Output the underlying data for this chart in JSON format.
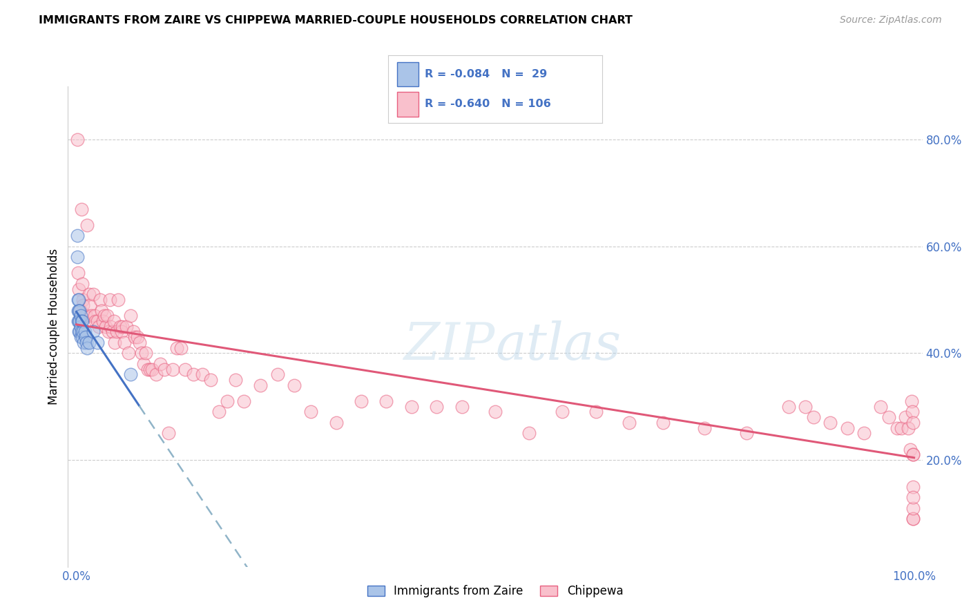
{
  "title": "IMMIGRANTS FROM ZAIRE VS CHIPPEWA MARRIED-COUPLE HOUSEHOLDS CORRELATION CHART",
  "source": "Source: ZipAtlas.com",
  "ylabel": "Married-couple Households",
  "y_ticks": [
    0.2,
    0.4,
    0.6,
    0.8
  ],
  "y_tick_labels": [
    "20.0%",
    "40.0%",
    "60.0%",
    "80.0%"
  ],
  "legend_labels_bottom": [
    "Immigrants from Zaire",
    "Chippewa"
  ],
  "blue_fill_color": "#aac4e8",
  "blue_edge_color": "#4472c4",
  "pink_fill_color": "#f9c0cc",
  "pink_edge_color": "#e86080",
  "blue_line_color": "#4472c4",
  "pink_line_color": "#e05878",
  "dashed_line_color": "#90b4c8",
  "grid_color": "#cccccc",
  "blue_scatter_x": [
    0.001,
    0.001,
    0.002,
    0.002,
    0.002,
    0.003,
    0.003,
    0.003,
    0.003,
    0.004,
    0.004,
    0.004,
    0.005,
    0.005,
    0.005,
    0.006,
    0.006,
    0.007,
    0.007,
    0.008,
    0.009,
    0.01,
    0.011,
    0.012,
    0.013,
    0.015,
    0.02,
    0.025,
    0.065
  ],
  "blue_scatter_y": [
    0.62,
    0.58,
    0.5,
    0.48,
    0.46,
    0.5,
    0.48,
    0.46,
    0.44,
    0.48,
    0.46,
    0.44,
    0.47,
    0.45,
    0.43,
    0.46,
    0.44,
    0.46,
    0.43,
    0.44,
    0.42,
    0.44,
    0.43,
    0.42,
    0.41,
    0.42,
    0.44,
    0.42,
    0.36
  ],
  "pink_scatter_x": [
    0.001,
    0.002,
    0.003,
    0.005,
    0.006,
    0.007,
    0.008,
    0.008,
    0.01,
    0.012,
    0.013,
    0.015,
    0.016,
    0.018,
    0.02,
    0.022,
    0.023,
    0.025,
    0.027,
    0.028,
    0.03,
    0.032,
    0.033,
    0.035,
    0.037,
    0.038,
    0.04,
    0.041,
    0.043,
    0.045,
    0.046,
    0.048,
    0.05,
    0.052,
    0.054,
    0.055,
    0.057,
    0.06,
    0.062,
    0.065,
    0.068,
    0.07,
    0.073,
    0.075,
    0.078,
    0.08,
    0.083,
    0.085,
    0.088,
    0.09,
    0.095,
    0.1,
    0.105,
    0.11,
    0.115,
    0.12,
    0.125,
    0.13,
    0.14,
    0.15,
    0.16,
    0.17,
    0.18,
    0.19,
    0.2,
    0.22,
    0.24,
    0.26,
    0.28,
    0.31,
    0.34,
    0.37,
    0.4,
    0.43,
    0.46,
    0.5,
    0.54,
    0.58,
    0.62,
    0.66,
    0.7,
    0.75,
    0.8,
    0.85,
    0.87,
    0.88,
    0.9,
    0.92,
    0.94,
    0.96,
    0.97,
    0.98,
    0.985,
    0.99,
    0.993,
    0.995,
    0.997,
    0.998,
    0.999,
    0.999,
    0.999,
    0.999,
    0.999,
    0.999,
    0.999,
    0.999
  ],
  "pink_scatter_y": [
    0.8,
    0.55,
    0.52,
    0.48,
    0.67,
    0.53,
    0.5,
    0.49,
    0.47,
    0.47,
    0.64,
    0.51,
    0.49,
    0.47,
    0.51,
    0.47,
    0.46,
    0.46,
    0.45,
    0.5,
    0.48,
    0.46,
    0.47,
    0.45,
    0.47,
    0.44,
    0.5,
    0.45,
    0.44,
    0.46,
    0.42,
    0.44,
    0.5,
    0.45,
    0.44,
    0.45,
    0.42,
    0.45,
    0.4,
    0.47,
    0.44,
    0.43,
    0.43,
    0.42,
    0.4,
    0.38,
    0.4,
    0.37,
    0.37,
    0.37,
    0.36,
    0.38,
    0.37,
    0.25,
    0.37,
    0.41,
    0.41,
    0.37,
    0.36,
    0.36,
    0.35,
    0.29,
    0.31,
    0.35,
    0.31,
    0.34,
    0.36,
    0.34,
    0.29,
    0.27,
    0.31,
    0.31,
    0.3,
    0.3,
    0.3,
    0.29,
    0.25,
    0.29,
    0.29,
    0.27,
    0.27,
    0.26,
    0.25,
    0.3,
    0.3,
    0.28,
    0.27,
    0.26,
    0.25,
    0.3,
    0.28,
    0.26,
    0.26,
    0.28,
    0.26,
    0.22,
    0.31,
    0.29,
    0.27,
    0.09,
    0.09,
    0.15,
    0.11,
    0.13,
    0.21,
    0.21
  ]
}
